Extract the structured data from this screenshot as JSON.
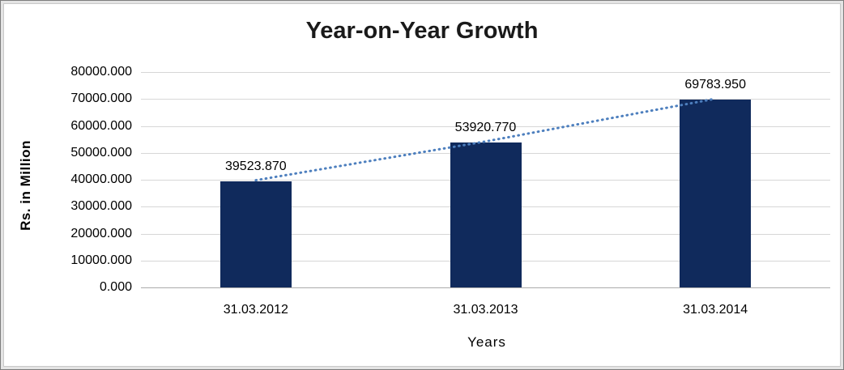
{
  "chart_data": {
    "type": "bar",
    "title": "Year-on-Year Growth",
    "xlabel": "Years",
    "ylabel": "Rs. in Million",
    "categories": [
      "31.03.2012",
      "31.03.2013",
      "31.03.2014"
    ],
    "values": [
      39523.87,
      53920.77,
      69783.95
    ],
    "data_labels": [
      "39523.870",
      "53920.770",
      "69783.950"
    ],
    "y_tick_labels": [
      "80000.000",
      "70000.000",
      "60000.000",
      "50000.000",
      "40000.000",
      "30000.000",
      "20000.000",
      "10000.000",
      "0.000"
    ],
    "ylim": [
      0,
      80000
    ],
    "grid": true,
    "legend": "none",
    "colors": {
      "bar": "#102a5c",
      "trendline": "#4d7fbe",
      "gridline": "#d7d7d7",
      "baseline": "#ababab",
      "text": "#000000"
    },
    "trendline": {
      "style": "dotted",
      "connects": "bar tops from 31.03.2012 to 31.03.2014"
    }
  }
}
